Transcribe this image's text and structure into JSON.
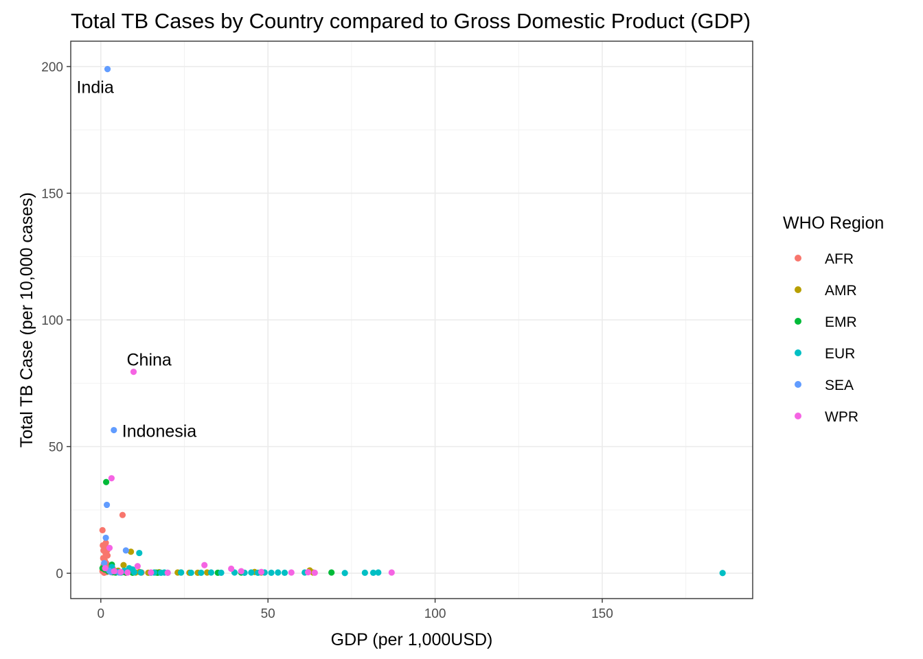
{
  "chart_data": {
    "type": "scatter",
    "title": "Total TB Cases by Country compared to Gross Domestic Product (GDP)",
    "xlabel": "GDP (per 1,000USD)",
    "ylabel": "Total TB Case (per 10,000 cases)",
    "xlim": [
      -9,
      195
    ],
    "ylim": [
      -10,
      210
    ],
    "x_ticks": [
      0,
      50,
      100,
      150
    ],
    "y_ticks": [
      0,
      50,
      100,
      150,
      200
    ],
    "grid": true,
    "legend": {
      "title": "WHO Region",
      "position": "right"
    },
    "series": [
      {
        "name": "AFR",
        "color": "#F8766D",
        "points": [
          [
            0.5,
            17
          ],
          [
            0.6,
            11
          ],
          [
            1.1,
            10
          ],
          [
            0.8,
            9
          ],
          [
            1.4,
            8
          ],
          [
            1.9,
            9
          ],
          [
            2.2,
            10
          ],
          [
            0.7,
            6
          ],
          [
            1.2,
            5
          ],
          [
            1.6,
            4
          ],
          [
            2.4,
            3
          ],
          [
            0.9,
            2
          ],
          [
            1.3,
            1.5
          ],
          [
            0.6,
            1
          ],
          [
            2.8,
            1
          ],
          [
            1.7,
            0.5
          ],
          [
            3.2,
            0.4
          ],
          [
            1.0,
            0.2
          ],
          [
            0.5,
            0.8
          ],
          [
            6.5,
            23
          ],
          [
            4.5,
            0.3
          ],
          [
            5.5,
            0.6
          ],
          [
            7.5,
            0.2
          ],
          [
            9.5,
            0.4
          ],
          [
            12.2,
            0.3
          ],
          [
            2.0,
            7
          ],
          [
            1.5,
            12
          ],
          [
            3.5,
            2
          ],
          [
            4.2,
            1
          ],
          [
            0.8,
            3
          ]
        ]
      },
      {
        "name": "AMR",
        "color": "#B79F00",
        "points": [
          [
            9.0,
            8.5
          ],
          [
            6.8,
            3.2
          ],
          [
            5.2,
            1
          ],
          [
            3.8,
            0.5
          ],
          [
            7.2,
            0.4
          ],
          [
            8.6,
            0.6
          ],
          [
            10.4,
            0.3
          ],
          [
            11.6,
            0.5
          ],
          [
            14.2,
            0.2
          ],
          [
            16.5,
            0.3
          ],
          [
            17.5,
            0.4
          ],
          [
            23.0,
            0.3
          ],
          [
            26.5,
            0.2
          ],
          [
            29.0,
            0.2
          ],
          [
            31.8,
            0.3
          ],
          [
            46.0,
            0.5
          ],
          [
            62.5,
            1.1
          ],
          [
            63.5,
            0.3
          ],
          [
            48.0,
            0.3
          ]
        ]
      },
      {
        "name": "EMR",
        "color": "#00BA38",
        "points": [
          [
            1.6,
            36
          ],
          [
            3.3,
            3.4
          ],
          [
            0.5,
            2
          ],
          [
            1.2,
            1.5
          ],
          [
            2.2,
            0.8
          ],
          [
            3.6,
            0.4
          ],
          [
            4.4,
            0.3
          ],
          [
            5.0,
            0.5
          ],
          [
            6.3,
            0.4
          ],
          [
            7.5,
            0.3
          ],
          [
            9.5,
            0.2
          ],
          [
            12.0,
            0.3
          ],
          [
            17.0,
            0.2
          ],
          [
            24.0,
            0.3
          ],
          [
            35.0,
            0.2
          ],
          [
            42.0,
            0.3
          ],
          [
            69.0,
            0.3
          ]
        ]
      },
      {
        "name": "EUR",
        "color": "#00BFC4",
        "points": [
          [
            11.5,
            8
          ],
          [
            3.3,
            2.5
          ],
          [
            8.5,
            2
          ],
          [
            9.5,
            1.5
          ],
          [
            7.0,
            1
          ],
          [
            5.0,
            0.5
          ],
          [
            6.0,
            0.3
          ],
          [
            10.0,
            0.4
          ],
          [
            12.0,
            0.3
          ],
          [
            15.0,
            0.2
          ],
          [
            16.0,
            0.3
          ],
          [
            18.0,
            0.2
          ],
          [
            19.0,
            0.3
          ],
          [
            20.0,
            0.2
          ],
          [
            24.0,
            0.3
          ],
          [
            27.0,
            0.2
          ],
          [
            30.0,
            0.2
          ],
          [
            33.0,
            0.3
          ],
          [
            36.0,
            0.2
          ],
          [
            40.0,
            0.3
          ],
          [
            43.0,
            0.2
          ],
          [
            45.0,
            0.3
          ],
          [
            47.0,
            0.2
          ],
          [
            49.0,
            0.3
          ],
          [
            51.0,
            0.2
          ],
          [
            53.0,
            0.3
          ],
          [
            55.0,
            0.2
          ],
          [
            61.0,
            0.3
          ],
          [
            73.0,
            0.1
          ],
          [
            79.0,
            0.2
          ],
          [
            81.5,
            0.2
          ],
          [
            83.0,
            0.3
          ],
          [
            186.0,
            0.1
          ]
        ]
      },
      {
        "name": "SEA",
        "color": "#619CFF",
        "points": [
          [
            2.0,
            199
          ],
          [
            3.9,
            56.5
          ],
          [
            1.8,
            27
          ],
          [
            1.5,
            14
          ],
          [
            7.5,
            9
          ],
          [
            1.0,
            4
          ],
          [
            2.5,
            1
          ],
          [
            3.0,
            0.5
          ],
          [
            5.5,
            0.3
          ]
        ]
      },
      {
        "name": "WPR",
        "color": "#F564E3",
        "points": [
          [
            9.8,
            79.5
          ],
          [
            3.2,
            37.5
          ],
          [
            2.6,
            10
          ],
          [
            11.0,
            2.8
          ],
          [
            31.0,
            3.2
          ],
          [
            39.0,
            1.8
          ],
          [
            42.0,
            0.8
          ],
          [
            48.0,
            0.5
          ],
          [
            57.0,
            0.3
          ],
          [
            62.0,
            0.4
          ],
          [
            64.0,
            0.2
          ],
          [
            87.0,
            0.3
          ],
          [
            1.3,
            2
          ],
          [
            4.0,
            0.8
          ],
          [
            6.0,
            0.5
          ],
          [
            8.0,
            0.3
          ],
          [
            15.0,
            0.3
          ],
          [
            20.0,
            0.2
          ]
        ]
      }
    ],
    "annotations": [
      {
        "text": "India",
        "x": 2.0,
        "y": 199
      },
      {
        "text": "China",
        "x": 9.8,
        "y": 79.5
      },
      {
        "text": "Indonesia",
        "x": 3.9,
        "y": 56.5
      }
    ]
  }
}
